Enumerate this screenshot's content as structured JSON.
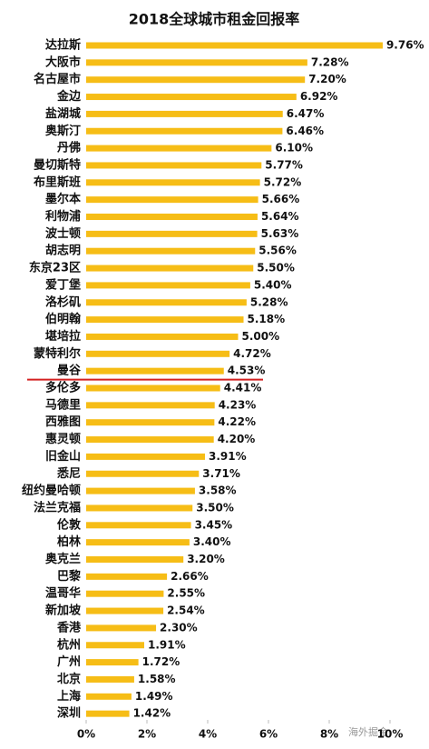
{
  "chart_data": {
    "type": "bar",
    "orientation": "horizontal",
    "title": "2018全球城市租金回报率",
    "categories": [
      "达拉斯",
      "大阪市",
      "名古屋市",
      "金边",
      "盐湖城",
      "奥斯汀",
      "丹佛",
      "曼切斯特",
      "布里斯班",
      "墨尔本",
      "利物浦",
      "波士顿",
      "胡志明",
      "东京23区",
      "爱丁堡",
      "洛杉矶",
      "伯明翰",
      "堪培拉",
      "蒙特利尔",
      "曼谷",
      "多伦多",
      "马德里",
      "西雅图",
      "惠灵顿",
      "旧金山",
      "悉尼",
      "纽约曼哈顿",
      "法兰克福",
      "伦敦",
      "柏林",
      "奥克兰",
      "巴黎",
      "温哥华",
      "新加坡",
      "香港",
      "杭州",
      "广州",
      "北京",
      "上海",
      "深圳"
    ],
    "values": [
      9.76,
      7.28,
      7.2,
      6.92,
      6.47,
      6.46,
      6.1,
      5.77,
      5.72,
      5.66,
      5.64,
      5.63,
      5.56,
      5.5,
      5.4,
      5.28,
      5.18,
      5.0,
      4.72,
      4.53,
      4.41,
      4.23,
      4.22,
      4.2,
      3.91,
      3.71,
      3.58,
      3.5,
      3.45,
      3.4,
      3.2,
      2.66,
      2.55,
      2.54,
      2.3,
      1.91,
      1.72,
      1.58,
      1.49,
      1.42
    ],
    "value_labels": [
      "9.76%",
      "7.28%",
      "7.20%",
      "6.92%",
      "6.47%",
      "6.46%",
      "6.10%",
      "5.77%",
      "5.72%",
      "5.66%",
      "5.64%",
      "5.63%",
      "5.56%",
      "5.50%",
      "5.40%",
      "5.28%",
      "5.18%",
      "5.00%",
      "4.72%",
      "4.53%",
      "4.41%",
      "4.23%",
      "4.22%",
      "4.20%",
      "3.91%",
      "3.71%",
      "3.58%",
      "3.50%",
      "3.45%",
      "3.40%",
      "3.20%",
      "2.66%",
      "2.55%",
      "2.54%",
      "2.30%",
      "1.91%",
      "1.72%",
      "1.58%",
      "1.49%",
      "1.42%"
    ],
    "color": "#f6bd16",
    "xlim": [
      0,
      10
    ],
    "xticks": [
      {
        "value": 0,
        "label": "0%"
      },
      {
        "value": 2,
        "label": "2%"
      },
      {
        "value": 4,
        "label": "4%"
      },
      {
        "value": 6,
        "label": "6%"
      },
      {
        "value": 8,
        "label": "8%"
      },
      {
        "value": 10,
        "label": "10%"
      }
    ],
    "watermark": "海外掘金"
  }
}
